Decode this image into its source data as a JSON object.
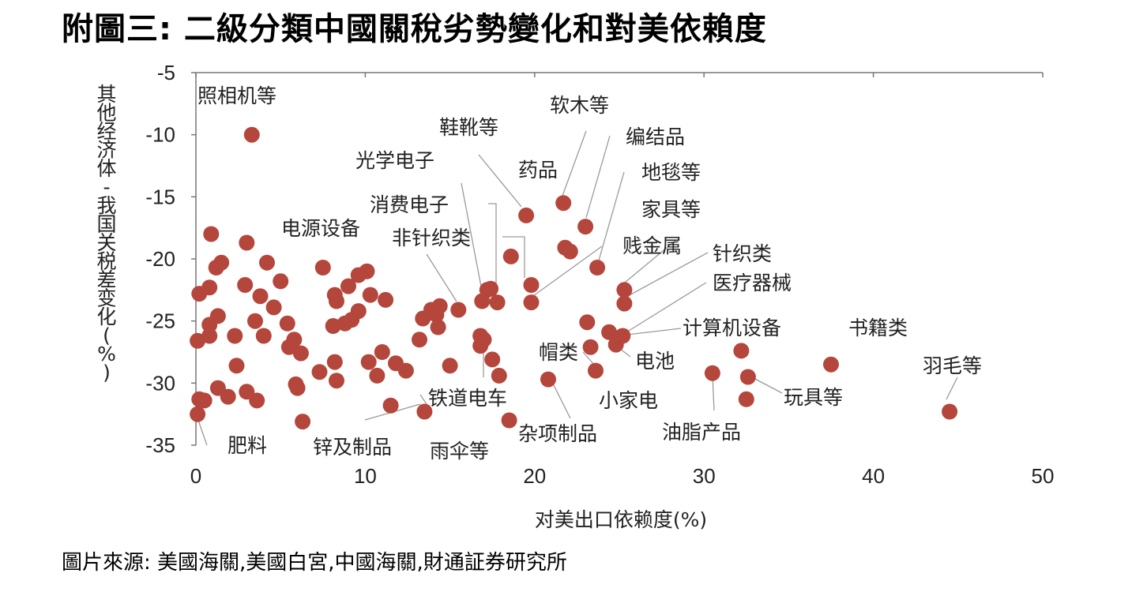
{
  "title": "附圖三: 二級分類中國關稅劣勢變化和對美依賴度",
  "source": "圖片來源: 美國海關,美國白宮,中國海關,財通証券研究所",
  "chart_data": {
    "type": "scatter",
    "xlabel": "对美出口依赖度(%)",
    "ylabel": "其他经济体-我国关税差变化(%)",
    "xlim": [
      0,
      50
    ],
    "ylim": [
      -35,
      -5
    ],
    "xticks": [
      0,
      10,
      20,
      30,
      40,
      50
    ],
    "yticks": [
      -5,
      -10,
      -15,
      -20,
      -25,
      -30,
      -35
    ],
    "marker_color": "#b5463c",
    "points": [
      [
        3.3,
        -10
      ],
      [
        0.9,
        -18
      ],
      [
        3,
        -18.7
      ],
      [
        0.2,
        -22.8
      ],
      [
        0.8,
        -22.3
      ],
      [
        1.2,
        -20.7
      ],
      [
        1.5,
        -20.3
      ],
      [
        2.9,
        -22.1
      ],
      [
        3.5,
        -25
      ],
      [
        3.8,
        -23
      ],
      [
        4.2,
        -20.3
      ],
      [
        4.6,
        -23.9
      ],
      [
        5,
        -21.8
      ],
      [
        5.4,
        -25.2
      ],
      [
        5.8,
        -26.5
      ],
      [
        1.3,
        -24.6
      ],
      [
        0.8,
        -25.3
      ],
      [
        0.8,
        -26.2
      ],
      [
        0.1,
        -26.6
      ],
      [
        2.3,
        -26.2
      ],
      [
        2.4,
        -28.6
      ],
      [
        4,
        -26.2
      ],
      [
        5.5,
        -27.1
      ],
      [
        6.2,
        -27.6
      ],
      [
        6,
        -30.4
      ],
      [
        5.9,
        -30.1
      ],
      [
        1.3,
        -30.4
      ],
      [
        1.9,
        -31.1
      ],
      [
        3,
        -30.7
      ],
      [
        3.6,
        -31.4
      ],
      [
        0.2,
        -31.3
      ],
      [
        0.5,
        -31.4
      ],
      [
        0.1,
        -32.5
      ],
      [
        6.3,
        -33.1
      ],
      [
        7.5,
        -20.7
      ],
      [
        8.2,
        -22.9
      ],
      [
        8.3,
        -23.4
      ],
      [
        9,
        -22.2
      ],
      [
        9.6,
        -21.3
      ],
      [
        10.1,
        -21
      ],
      [
        10.3,
        -22.9
      ],
      [
        9.6,
        -24.2
      ],
      [
        9.2,
        -24.9
      ],
      [
        8.1,
        -25.4
      ],
      [
        8.8,
        -25.2
      ],
      [
        7.3,
        -29.1
      ],
      [
        8.2,
        -28.3
      ],
      [
        8.3,
        -29.8
      ],
      [
        10.2,
        -28.3
      ],
      [
        10.7,
        -29.4
      ],
      [
        11,
        -27.5
      ],
      [
        11.2,
        -23.3
      ],
      [
        11.5,
        -31.8
      ],
      [
        11.8,
        -28.4
      ],
      [
        12.4,
        -29
      ],
      [
        13.2,
        -26.5
      ],
      [
        13.4,
        -24.8
      ],
      [
        13.5,
        -32.3
      ],
      [
        13.9,
        -24.1
      ],
      [
        14.2,
        -24.5
      ],
      [
        14.3,
        -25.5
      ],
      [
        14.4,
        -23.8
      ],
      [
        15,
        -28.6
      ],
      [
        15.5,
        -24.1
      ],
      [
        16.8,
        -26.2
      ],
      [
        16.8,
        -27
      ],
      [
        17,
        -26.5
      ],
      [
        17.5,
        -28.1
      ],
      [
        17.9,
        -29.4
      ],
      [
        17.2,
        -22.5
      ],
      [
        17.4,
        -22.4
      ],
      [
        16.9,
        -23.4
      ],
      [
        17.8,
        -23.5
      ],
      [
        18.6,
        -19.8
      ],
      [
        18.5,
        -33
      ],
      [
        19.5,
        -16.5
      ],
      [
        19.8,
        -22.1
      ],
      [
        19.8,
        -23.5
      ],
      [
        20.8,
        -29.7
      ],
      [
        21.7,
        -15.5
      ],
      [
        21.8,
        -19.1
      ],
      [
        22.1,
        -19.4
      ],
      [
        23,
        -17.4
      ],
      [
        23.7,
        -20.7
      ],
      [
        23.1,
        -25.1
      ],
      [
        23.3,
        -27.1
      ],
      [
        23.6,
        -29
      ],
      [
        24.4,
        -25.9
      ],
      [
        24.8,
        -26.9
      ],
      [
        25.2,
        -26.2
      ],
      [
        25.3,
        -22.5
      ],
      [
        25.3,
        -23.6
      ],
      [
        30.5,
        -29.2
      ],
      [
        32.2,
        -27.4
      ],
      [
        32.6,
        -29.5
      ],
      [
        32.5,
        -31.3
      ],
      [
        37.5,
        -28.5
      ],
      [
        44.5,
        -32.3
      ]
    ],
    "annotations": [
      "照相机等",
      "软木等",
      "鞋靴等",
      "编结品",
      "光学电子",
      "药品",
      "地毯等",
      "消费电子",
      "家具等",
      "电源设备",
      "非针织类",
      "贱金属",
      "针织类",
      "医疗器械",
      "计算机设备",
      "书籍类",
      "帽类",
      "电池",
      "羽毛等",
      "小家电",
      "玩具等",
      "铁道电车",
      "杂项制品",
      "油脂产品",
      "肥料",
      "锌及制品",
      "雨伞等"
    ]
  }
}
